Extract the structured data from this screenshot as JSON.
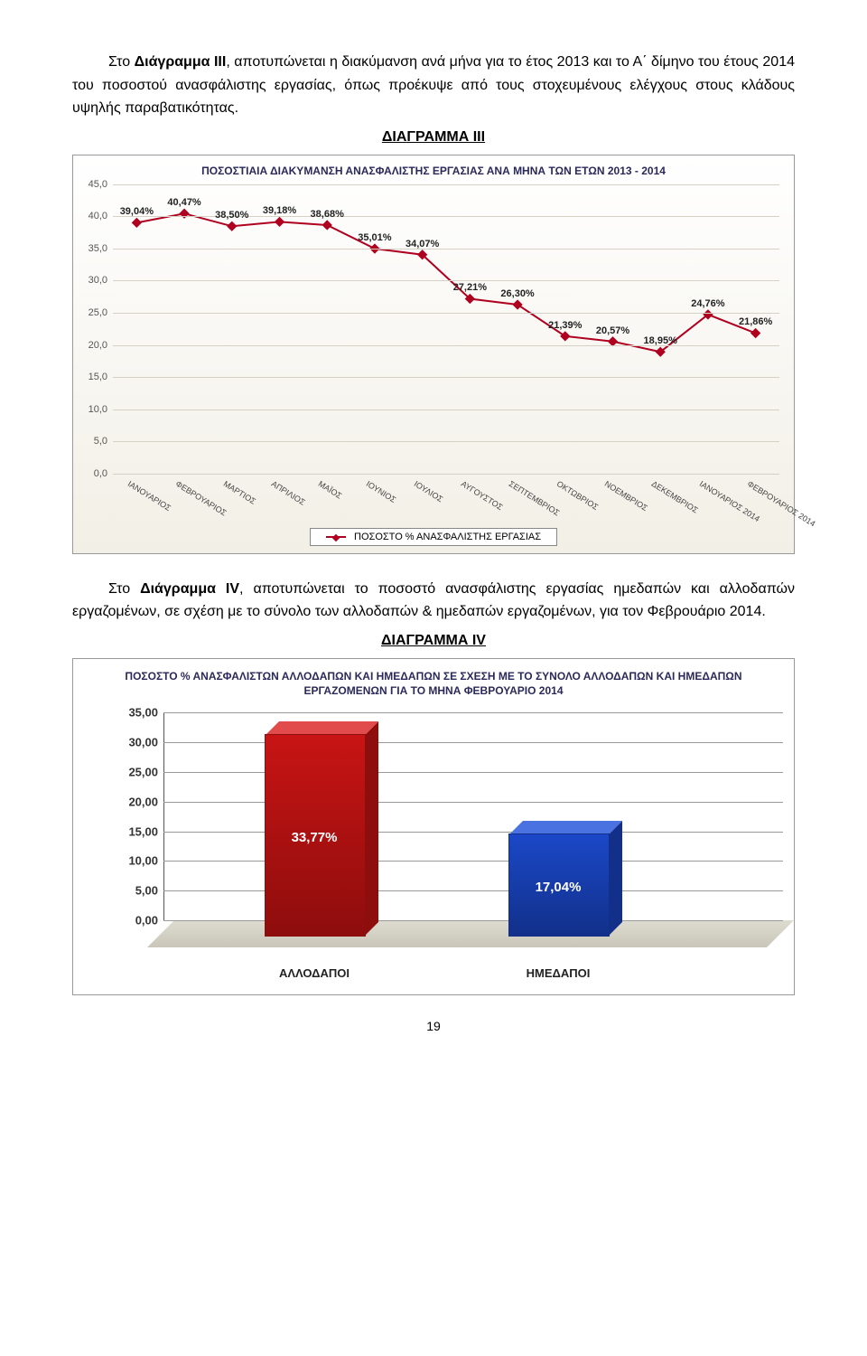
{
  "para1": {
    "pre": "Στο ",
    "bold1": "Διάγραμμα ΙΙΙ",
    "mid": ", αποτυπώνεται η διακύμανση ανά μήνα για το έτος 2013 και το Α΄ δίμηνο του έτους 2014 του ποσοστού ανασφάλιστης εργασίας, όπως προέκυψε από τους στοχευμένους ελέγχους στους κλάδους υψηλής παραβατικότητας."
  },
  "chart3_title": "ΔΙΑΓΡΑΜΜΑ ΙΙΙ",
  "chart3": {
    "caption": "ΠΟΣΟΣΤΙΑΙΑ ΔΙΑΚΥΜΑΝΣΗ ΑΝΑΣΦΑΛΙΣΤΗΣ ΕΡΓΑΣΙΑΣ ΑΝΑ ΜΗΝΑ ΤΩΝ ΕΤΩΝ 2013 - 2014",
    "ylim": [
      0,
      45
    ],
    "ytick_step": 5,
    "line_color": "#b00020",
    "marker_color": "#b00020",
    "grid_color": "#d5d2c5",
    "background_gradient": [
      "#ffffff",
      "#f2efe6"
    ],
    "categories": [
      "ΙΑΝΟΥΑΡΙΟΣ",
      "ΦΕΒΡΟΥΑΡΙΟΣ",
      "ΜΑΡΤΙΟΣ",
      "ΑΠΡΙΛΙΟΣ",
      "ΜΑΪΟΣ",
      "ΙΟΥΝΙΟΣ",
      "ΙΟΥΛΙΟΣ",
      "ΑΥΓΟΥΣΤΟΣ",
      "ΣΕΠΤΕΜΒΡΙΟΣ",
      "ΟΚΤΩΒΡΙΟΣ",
      "ΝΟΕΜΒΡΙΟΣ",
      "ΔΕΚΕΜΒΡΙΟΣ",
      "ΙΑΝΟΥΑΡΙΟΣ 2014",
      "ΦΕΒΡΟΥΑΡΙΟΣ 2014"
    ],
    "values": [
      39.04,
      40.47,
      38.5,
      39.18,
      38.68,
      35.01,
      34.07,
      27.21,
      26.3,
      21.39,
      20.57,
      18.95,
      24.76,
      21.86
    ],
    "value_labels": [
      "39,04%",
      "40,47%",
      "38,50%",
      "39,18%",
      "38,68%",
      "35,01%",
      "34,07%",
      "27,21%",
      "26,30%",
      "21,39%",
      "20,57%",
      "18,95%",
      "24,76%",
      "21,86%"
    ],
    "legend_text": "ΠΟΣΟΣΤΟ % ΑΝΑΣΦΑΛΙΣΤΗΣ ΕΡΓΑΣΙΑΣ"
  },
  "para2": {
    "pre": "Στο ",
    "bold1": "Διάγραμμα IV",
    "mid": ", αποτυπώνεται το ποσοστό ανασφάλιστης εργασίας ημεδαπών και αλλοδαπών εργαζομένων, σε σχέση με το σύνολο των αλλοδαπών & ημεδαπών εργαζομένων, για τον Φεβρουάριο 2014."
  },
  "chart4_title": "ΔΙΑΓΡΑΜΜΑ IV",
  "chart4": {
    "caption": "ΠΟΣΟΣΤΟ % ΑΝΑΣΦΑΛΙΣΤΩΝ ΑΛΛΟΔΑΠΩΝ ΚΑΙ ΗΜΕΔΑΠΩΝ ΣΕ ΣΧΕΣΗ ΜΕ ΤΟ ΣΥΝΟΛΟ ΑΛΛΟΔΑΠΩΝ ΚΑΙ ΗΜΕΔΑΠΩΝ ΕΡΓΑΖΟΜΕΝΩΝ ΓΙΑ ΤΟ ΜΗΝΑ ΦΕΒΡΟΥΑΡΙΟ 2014",
    "ylim": [
      0,
      35
    ],
    "ytick_step": 5,
    "grid_color": "#999999",
    "floor_color": "#d5d2c5",
    "bars": [
      {
        "label": "ΑΛΛΟΔΑΠΟΙ",
        "value": 33.77,
        "value_label": "33,77%",
        "front": "#c81414",
        "side": "#8e0d0d",
        "top": "#e24b4b"
      },
      {
        "label": "ΗΜΕΔΑΠΟΙ",
        "value": 17.04,
        "value_label": "17,04%",
        "front": "#1b48c8",
        "side": "#12308a",
        "top": "#4a72e0"
      }
    ]
  },
  "page_number": "19"
}
